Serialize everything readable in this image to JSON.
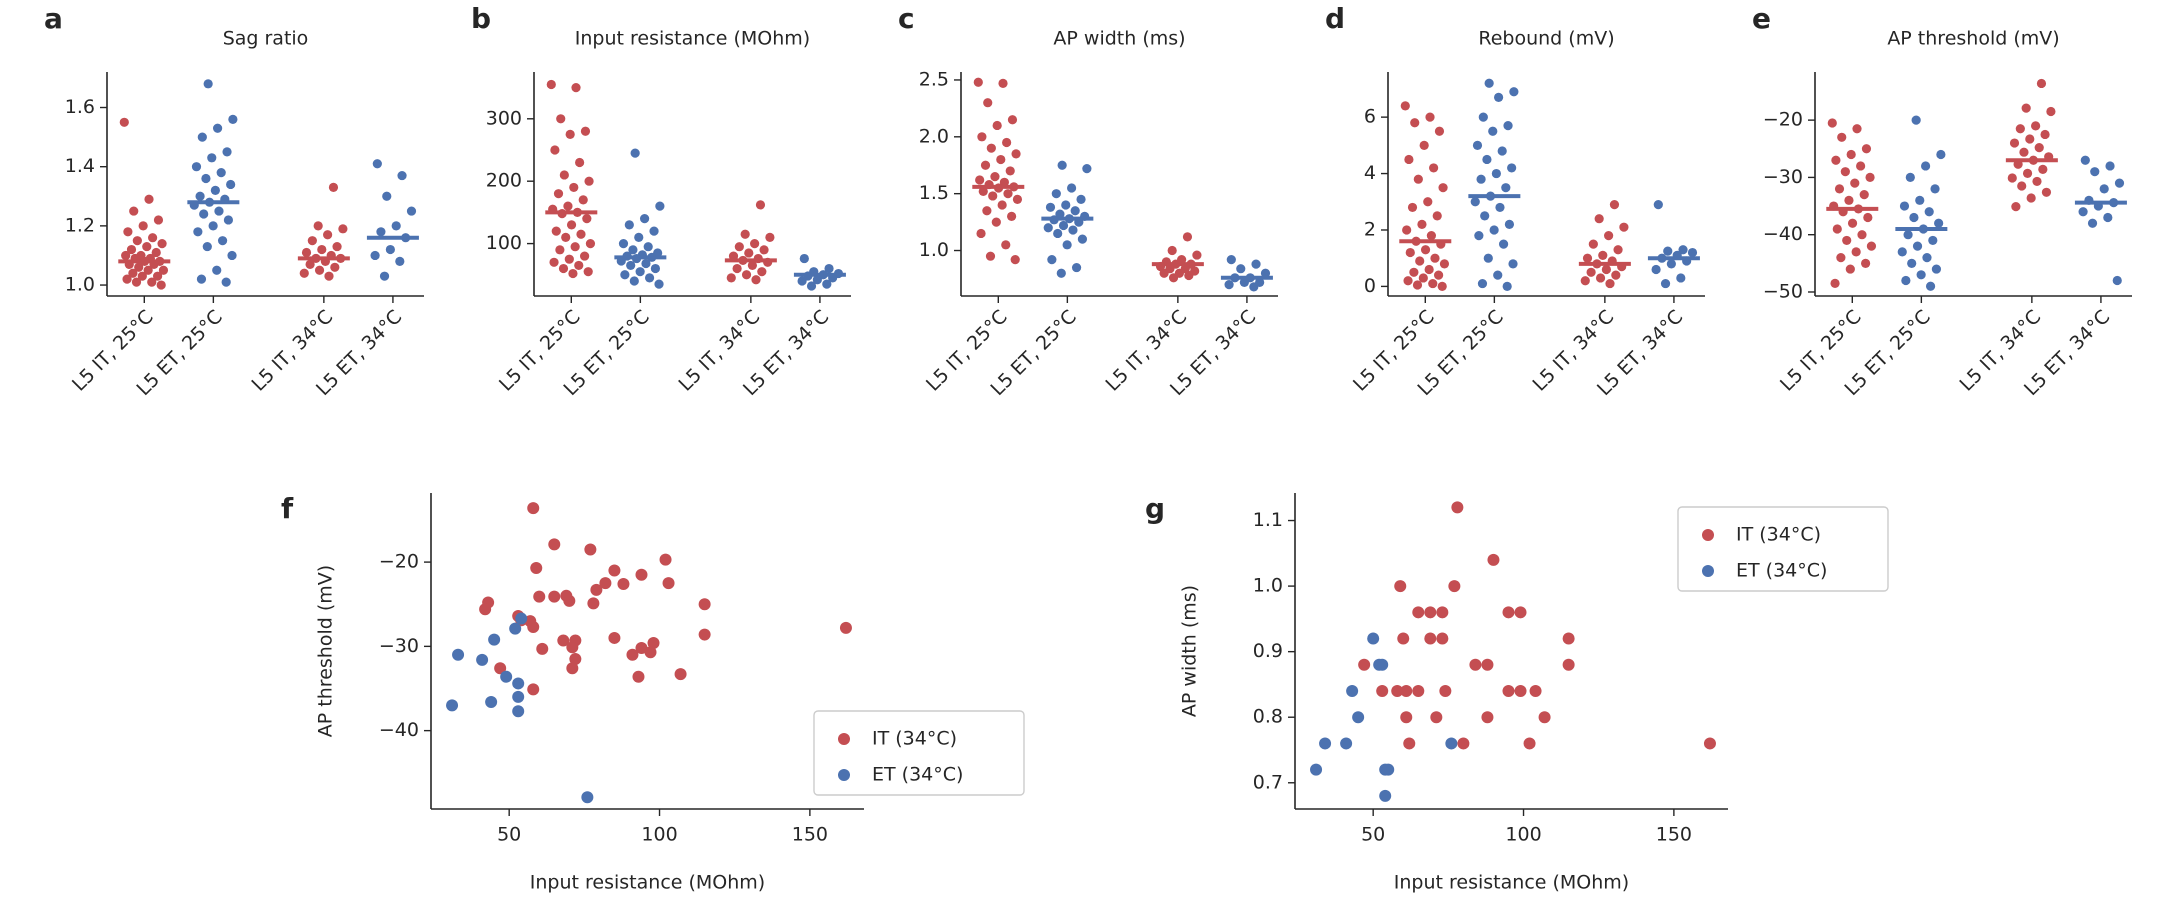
{
  "chart_data": [
    {
      "type": "strip",
      "label": "a",
      "title": "Sag ratio",
      "ylim": [
        0.963,
        1.72
      ],
      "yticks": [
        {
          "value": 1.0,
          "label": "1.0"
        },
        1.2,
        1.4,
        1.6
      ],
      "groups": [
        {
          "category": "L5 IT, 25°C",
          "color": "#c44e52",
          "median": 1.08,
          "values": [
            1.55,
            1.29,
            1.25,
            1.22,
            1.2,
            1.18,
            1.16,
            1.15,
            1.14,
            1.13,
            1.12,
            1.11,
            1.1,
            1.1,
            1.09,
            1.09,
            1.08,
            1.08,
            1.07,
            1.07,
            1.06,
            1.05,
            1.05,
            1.04,
            1.03,
            1.03,
            1.02,
            1.01,
            1.01,
            1.0
          ]
        },
        {
          "category": "L5 ET, 25°C",
          "color": "#4c72b0",
          "median": 1.28,
          "values": [
            1.68,
            1.56,
            1.53,
            1.5,
            1.45,
            1.43,
            1.4,
            1.38,
            1.36,
            1.34,
            1.32,
            1.3,
            1.29,
            1.28,
            1.27,
            1.25,
            1.24,
            1.22,
            1.2,
            1.18,
            1.15,
            1.13,
            1.1,
            1.05,
            1.02,
            1.01
          ]
        },
        {
          "category": "L5 IT, 34°C",
          "color": "#c44e52",
          "median": 1.09,
          "values": [
            1.33,
            1.2,
            1.19,
            1.17,
            1.15,
            1.13,
            1.12,
            1.11,
            1.1,
            1.09,
            1.09,
            1.08,
            1.07,
            1.06,
            1.05,
            1.04,
            1.03
          ]
        },
        {
          "category": "L5 ET, 34°C",
          "color": "#4c72b0",
          "median": 1.16,
          "values": [
            1.41,
            1.37,
            1.3,
            1.25,
            1.2,
            1.18,
            1.16,
            1.12,
            1.1,
            1.08,
            1.03
          ]
        }
      ]
    },
    {
      "type": "strip",
      "label": "b",
      "title": "Input resistance (MOhm)",
      "ylim": [
        16,
        375
      ],
      "yticks": [
        100,
        200,
        300
      ],
      "groups": [
        {
          "category": "L5 IT, 25°C",
          "color": "#c44e52",
          "median": 150,
          "values": [
            355,
            350,
            300,
            280,
            275,
            250,
            230,
            210,
            200,
            190,
            180,
            170,
            160,
            155,
            150,
            148,
            140,
            130,
            120,
            115,
            110,
            100,
            95,
            90,
            80,
            75,
            70,
            65,
            60,
            55,
            52
          ]
        },
        {
          "category": "L5 ET, 25°C",
          "color": "#4c72b0",
          "median": 78,
          "values": [
            245,
            160,
            140,
            130,
            120,
            110,
            100,
            95,
            90,
            85,
            82,
            80,
            78,
            76,
            72,
            68,
            65,
            60,
            55,
            50,
            45,
            40,
            35
          ]
        },
        {
          "category": "L5 IT, 34°C",
          "color": "#c44e52",
          "median": 73,
          "values": [
            162,
            115,
            110,
            100,
            95,
            90,
            85,
            80,
            76,
            73,
            70,
            65,
            60,
            55,
            50,
            45,
            42
          ]
        },
        {
          "category": "L5 ET, 34°C",
          "color": "#4c72b0",
          "median": 50,
          "values": [
            76,
            60,
            55,
            52,
            50,
            48,
            45,
            42,
            40,
            35,
            32
          ]
        }
      ]
    },
    {
      "type": "strip",
      "label": "c",
      "title": "AP width (ms)",
      "ylim": [
        0.6,
        2.57
      ],
      "yticks": [
        {
          "value": 1.0,
          "label": "1.0"
        },
        1.5,
        {
          "value": 2.0,
          "label": "2.0"
        },
        2.5
      ],
      "groups": [
        {
          "category": "L5 IT, 25°C",
          "color": "#c44e52",
          "median": 1.56,
          "values": [
            2.48,
            2.47,
            2.3,
            2.15,
            2.1,
            2.0,
            1.95,
            1.9,
            1.85,
            1.8,
            1.75,
            1.7,
            1.65,
            1.62,
            1.6,
            1.58,
            1.56,
            1.55,
            1.52,
            1.5,
            1.48,
            1.45,
            1.4,
            1.35,
            1.3,
            1.25,
            1.15,
            1.05,
            0.95,
            0.92
          ]
        },
        {
          "category": "L5 ET, 25°C",
          "color": "#4c72b0",
          "median": 1.28,
          "values": [
            1.75,
            1.72,
            1.55,
            1.5,
            1.45,
            1.4,
            1.38,
            1.35,
            1.32,
            1.3,
            1.28,
            1.27,
            1.25,
            1.22,
            1.2,
            1.18,
            1.15,
            1.1,
            1.05,
            0.92,
            0.85,
            0.8
          ]
        },
        {
          "category": "L5 IT, 34°C",
          "color": "#c44e52",
          "median": 0.88,
          "values": [
            1.12,
            1.0,
            0.96,
            0.92,
            0.9,
            0.88,
            0.88,
            0.86,
            0.84,
            0.84,
            0.82,
            0.8,
            0.8,
            0.78,
            0.76
          ]
        },
        {
          "category": "L5 ET, 34°C",
          "color": "#4c72b0",
          "median": 0.76,
          "values": [
            0.92,
            0.88,
            0.84,
            0.8,
            0.76,
            0.76,
            0.72,
            0.72,
            0.7,
            0.68
          ]
        }
      ]
    },
    {
      "type": "strip",
      "label": "d",
      "title": "Rebound (mV)",
      "ylim": [
        -0.34,
        7.6
      ],
      "yticks": [
        0,
        2,
        4,
        6
      ],
      "groups": [
        {
          "category": "L5 IT, 25°C",
          "color": "#c44e52",
          "median": 1.6,
          "values": [
            6.4,
            6.0,
            5.8,
            5.5,
            5.0,
            4.5,
            4.2,
            3.8,
            3.5,
            3.0,
            2.8,
            2.5,
            2.2,
            2.0,
            1.8,
            1.6,
            1.5,
            1.3,
            1.2,
            1.0,
            0.9,
            0.8,
            0.6,
            0.5,
            0.4,
            0.3,
            0.2,
            0.1,
            0.05,
            0
          ]
        },
        {
          "category": "L5 ET, 25°C",
          "color": "#4c72b0",
          "median": 3.2,
          "values": [
            7.2,
            6.9,
            6.7,
            6.0,
            5.7,
            5.5,
            5.0,
            4.8,
            4.5,
            4.2,
            4.0,
            3.8,
            3.5,
            3.2,
            3.0,
            2.8,
            2.5,
            2.2,
            2.0,
            1.8,
            1.5,
            1.0,
            0.8,
            0.4,
            0.1,
            0
          ]
        },
        {
          "category": "L5 IT, 34°C",
          "color": "#c44e52",
          "median": 0.8,
          "values": [
            2.9,
            2.4,
            2.1,
            1.8,
            1.5,
            1.3,
            1.1,
            1.0,
            0.9,
            0.8,
            0.7,
            0.6,
            0.5,
            0.4,
            0.3,
            0.2,
            0.1
          ]
        },
        {
          "category": "L5 ET, 34°C",
          "color": "#4c72b0",
          "median": 1.0,
          "values": [
            2.9,
            1.3,
            1.25,
            1.2,
            1.1,
            1.0,
            0.9,
            0.8,
            0.6,
            0.3,
            0.1
          ]
        }
      ]
    },
    {
      "type": "strip",
      "label": "e",
      "title": "AP threshold (mV)",
      "ylim": [
        -50.7,
        -11.6
      ],
      "yticks": [
        {
          "value": -20,
          "label": "−20"
        },
        {
          "value": -30,
          "label": "−30"
        },
        {
          "value": -40,
          "label": "−40"
        },
        {
          "value": -50,
          "label": "−50"
        }
      ],
      "groups": [
        {
          "category": "L5 IT, 25°C",
          "color": "#c44e52",
          "median": -35.5,
          "values": [
            -20.5,
            -21.5,
            -23,
            -25,
            -26,
            -27,
            -28,
            -29,
            -30,
            -31,
            -32,
            -33,
            -34,
            -35,
            -35.5,
            -36,
            -37,
            -38,
            -39,
            -40,
            -41,
            -42,
            -43,
            -44,
            -45,
            -46,
            -48.5
          ]
        },
        {
          "category": "L5 ET, 25°C",
          "color": "#4c72b0",
          "median": -39,
          "values": [
            -20,
            -26,
            -28,
            -30,
            -32,
            -34,
            -35,
            -36,
            -37,
            -38,
            -39,
            -40,
            -41,
            -42,
            -43,
            -44,
            -45,
            -46,
            -47,
            -48,
            -49
          ]
        },
        {
          "category": "L5 IT, 34°C",
          "color": "#c44e52",
          "median": -27,
          "values": [
            -13.6,
            -17.9,
            -18.5,
            -21,
            -21.5,
            -22.5,
            -23.3,
            -24,
            -24.8,
            -25.6,
            -26.4,
            -27,
            -27.7,
            -28.6,
            -29.3,
            -30.1,
            -30.7,
            -31.5,
            -32.6,
            -33.6,
            -35.1
          ]
        },
        {
          "category": "L5 ET, 34°C",
          "color": "#4c72b0",
          "median": -34.4,
          "values": [
            -27,
            -28,
            -29,
            -31,
            -32,
            -34,
            -34.4,
            -35,
            -36,
            -37,
            -38,
            -48
          ]
        }
      ]
    },
    {
      "type": "scatter",
      "label": "f",
      "xlabel": "Input resistance (MOhm)",
      "ylabel": "AP threshold (mV)",
      "xlim": [
        24,
        168
      ],
      "xticks": [
        50,
        100,
        150
      ],
      "ylim": [
        -49.3,
        -11.8
      ],
      "yticks": [
        {
          "value": -20,
          "label": "−20"
        },
        {
          "value": -30,
          "label": "−30"
        },
        {
          "value": -40,
          "label": "−40"
        }
      ],
      "legend": "lower right",
      "series": [
        {
          "name": "IT (34°C)",
          "color": "#c44e52",
          "x": [
            58,
            65,
            77,
            85,
            94,
            102,
            103,
            88,
            79,
            82,
            59,
            69,
            65,
            60,
            70,
            78,
            43,
            42,
            115,
            57,
            58,
            54,
            53,
            61,
            68,
            72,
            71,
            72,
            71,
            85,
            91,
            94,
            97,
            98,
            93,
            115,
            107,
            162,
            47,
            58
          ],
          "y": [
            -13.6,
            -17.9,
            -18.5,
            -21,
            -21.5,
            -19.7,
            -22.5,
            -22.6,
            -23.3,
            -22.5,
            -20.7,
            -24,
            -24.1,
            -24.1,
            -24.6,
            -24.9,
            -24.8,
            -25.6,
            -25,
            -27,
            -27.7,
            -26.9,
            -26.4,
            -30.3,
            -29.3,
            -29.3,
            -30.1,
            -31.5,
            -32.6,
            -29,
            -31,
            -30.2,
            -30.7,
            -29.6,
            -33.6,
            -28.6,
            -33.3,
            -27.8,
            -32.6,
            -35.1
          ]
        },
        {
          "name": "ET (34°C)",
          "color": "#4c72b0",
          "x": [
            33,
            31,
            45,
            41,
            49,
            53,
            53,
            53,
            44,
            52,
            54,
            76
          ],
          "y": [
            -31,
            -37,
            -29.2,
            -31.6,
            -33.6,
            -34.4,
            -36,
            -37.7,
            -36.6,
            -27.9,
            -26.7,
            -47.9
          ]
        }
      ]
    },
    {
      "type": "scatter",
      "label": "g",
      "xlabel": "Input resistance (MOhm)",
      "ylabel": "AP width (ms)",
      "xlim": [
        24,
        168
      ],
      "xticks": [
        50,
        100,
        150
      ],
      "ylim": [
        0.66,
        1.142
      ],
      "yticks": [
        0.7,
        0.8,
        0.9,
        {
          "value": 1.0,
          "label": "1.0"
        },
        1.1
      ],
      "legend": "upper right",
      "series": [
        {
          "name": "IT (34°C)",
          "color": "#c44e52",
          "x": [
            78,
            90,
            59,
            77,
            65,
            69,
            73,
            95,
            99,
            60,
            69,
            73,
            115,
            47,
            84,
            88,
            115,
            53,
            58,
            61,
            65,
            74,
            95,
            99,
            104,
            61,
            71,
            88,
            107,
            62,
            80,
            102,
            162
          ],
          "y": [
            1.12,
            1.04,
            1.0,
            1.0,
            0.96,
            0.96,
            0.96,
            0.96,
            0.96,
            0.92,
            0.92,
            0.92,
            0.92,
            0.88,
            0.88,
            0.88,
            0.88,
            0.84,
            0.84,
            0.84,
            0.84,
            0.84,
            0.84,
            0.84,
            0.84,
            0.8,
            0.8,
            0.8,
            0.8,
            0.76,
            0.76,
            0.76,
            0.76
          ]
        },
        {
          "name": "ET (34°C)",
          "color": "#4c72b0",
          "x": [
            50,
            52,
            53,
            43,
            45,
            34,
            41,
            76,
            31,
            54,
            55,
            54
          ],
          "y": [
            0.92,
            0.88,
            0.88,
            0.84,
            0.8,
            0.76,
            0.76,
            0.76,
            0.72,
            0.72,
            0.72,
            0.68
          ]
        }
      ]
    }
  ]
}
